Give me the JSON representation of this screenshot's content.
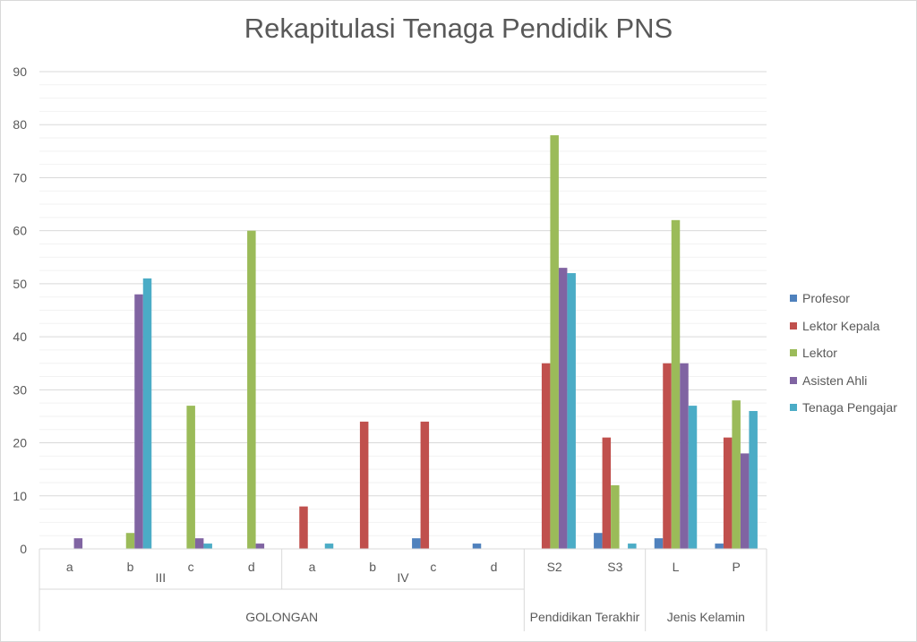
{
  "chart_data": {
    "type": "bar",
    "title": "Rekapitulasi Tenaga Pendidik PNS",
    "ylim": [
      0,
      90
    ],
    "yticks": [
      0,
      10,
      20,
      30,
      40,
      50,
      60,
      70,
      80,
      90
    ],
    "categories": [
      "a",
      "b",
      "c",
      "d",
      "a",
      "b",
      "c",
      "d",
      "S2",
      "S3",
      "L",
      "P"
    ],
    "groups_level1": [
      {
        "label": "III",
        "span": 4
      },
      {
        "label": "IV",
        "span": 4
      }
    ],
    "groups_level2": [
      {
        "label": "GOLONGAN",
        "span": 8
      },
      {
        "label": "Pendidikan Terakhir",
        "span": 2
      },
      {
        "label": "Jenis Kelamin",
        "span": 2
      }
    ],
    "series": [
      {
        "name": "Profesor",
        "color": "#4f81bd",
        "values": [
          0,
          0,
          0,
          0,
          0,
          0,
          2,
          1,
          0,
          3,
          2,
          1
        ]
      },
      {
        "name": "Lektor Kepala",
        "color": "#c0504d",
        "values": [
          0,
          0,
          0,
          0,
          8,
          24,
          24,
          0,
          35,
          21,
          35,
          21
        ]
      },
      {
        "name": "Lektor",
        "color": "#9bbb59",
        "values": [
          0,
          3,
          27,
          60,
          0,
          0,
          0,
          0,
          78,
          12,
          62,
          28
        ]
      },
      {
        "name": "Asisten Ahli",
        "color": "#8064a2",
        "values": [
          2,
          48,
          2,
          1,
          0,
          0,
          0,
          0,
          53,
          0,
          35,
          18
        ]
      },
      {
        "name": "Tenaga Pengajar",
        "color": "#4bacc6",
        "values": [
          0,
          51,
          1,
          0,
          1,
          0,
          0,
          0,
          52,
          1,
          27,
          26
        ]
      }
    ],
    "grid": true,
    "legend_position": "right"
  }
}
